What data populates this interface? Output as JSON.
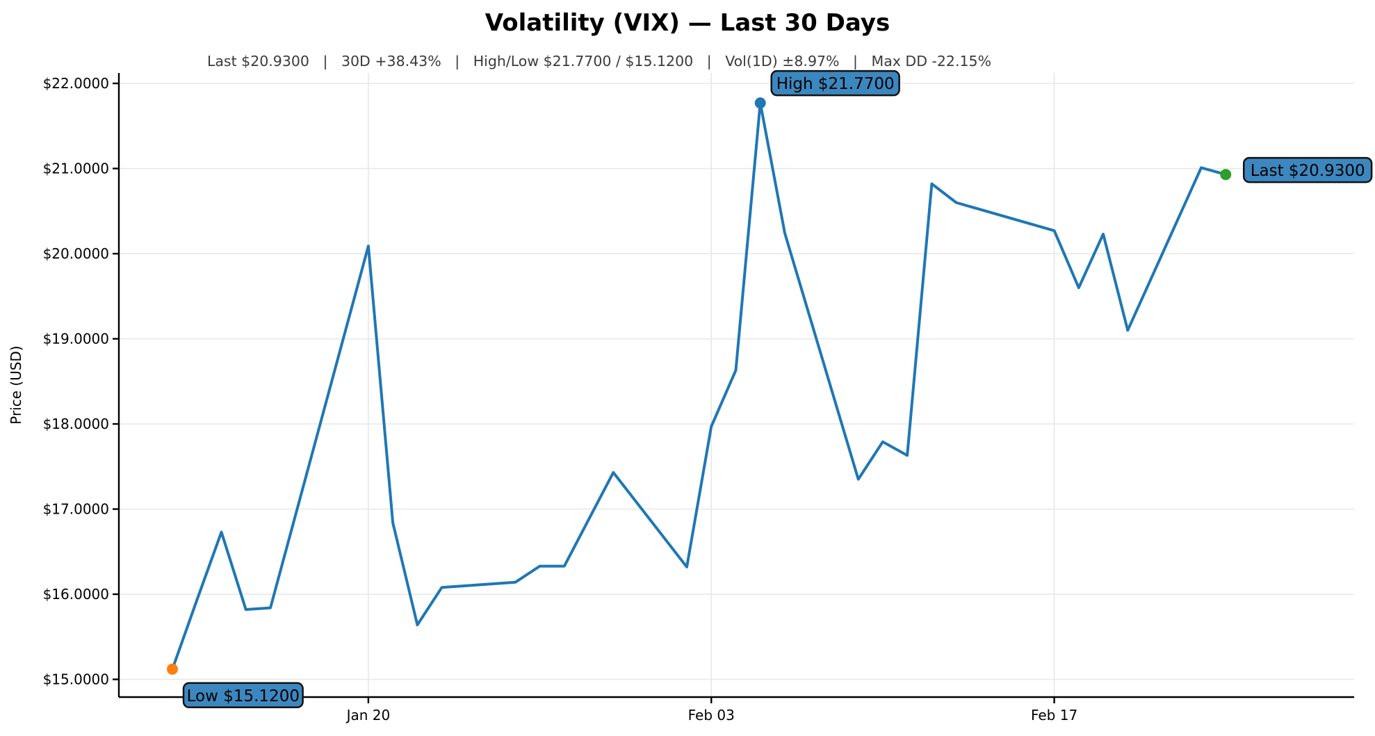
{
  "header": {
    "title": "Volatility (VIX) — Last 30 Days",
    "subtitle_segments": [
      "Last $20.9300",
      "30D +38.43%",
      "High/Low $21.7700 / $15.1200",
      "Vol(1D) ±8.97%",
      "Max DD -22.15%"
    ],
    "subtitle_separator": "|"
  },
  "chart_data": {
    "type": "line",
    "title": "Volatility (VIX) — Last 30 Days",
    "xlabel": "",
    "ylabel": "Price (USD)",
    "grid": true,
    "legend": false,
    "line_color": "#1f77b4",
    "background": "#ffffff",
    "ylim": [
      14.79,
      22.12
    ],
    "y_ticks": [
      {
        "value": 15,
        "label": "$15.0000"
      },
      {
        "value": 16,
        "label": "$16.0000"
      },
      {
        "value": 17,
        "label": "$17.0000"
      },
      {
        "value": 18,
        "label": "$18.0000"
      },
      {
        "value": 19,
        "label": "$19.0000"
      },
      {
        "value": 20,
        "label": "$20.0000"
      },
      {
        "value": 21,
        "label": "$21.0000"
      },
      {
        "value": 22,
        "label": "$22.0000"
      }
    ],
    "x_ticks": [
      {
        "label": "Jan 20",
        "offset": 8
      },
      {
        "label": "Feb 03",
        "offset": 22
      },
      {
        "label": "Feb 17",
        "offset": 36
      }
    ],
    "points": [
      {
        "date": "Jan 12",
        "offset": 0,
        "value": 15.12
      },
      {
        "date": "Jan 13",
        "offset": 1,
        "value": 15.93
      },
      {
        "date": "Jan 14",
        "offset": 2,
        "value": 16.73
      },
      {
        "date": "Jan 15",
        "offset": 3,
        "value": 15.82
      },
      {
        "date": "Jan 16",
        "offset": 4,
        "value": 15.84
      },
      {
        "date": "Jan 20",
        "offset": 8,
        "value": 20.09
      },
      {
        "date": "Jan 21",
        "offset": 9,
        "value": 16.84
      },
      {
        "date": "Jan 22",
        "offset": 10,
        "value": 15.64
      },
      {
        "date": "Jan 23",
        "offset": 11,
        "value": 16.08
      },
      {
        "date": "Jan 26",
        "offset": 14,
        "value": 16.14
      },
      {
        "date": "Jan 27",
        "offset": 15,
        "value": 16.33
      },
      {
        "date": "Jan 28",
        "offset": 16,
        "value": 16.33
      },
      {
        "date": "Jan 29",
        "offset": 17,
        "value": 16.88
      },
      {
        "date": "Jan 30",
        "offset": 18,
        "value": 17.43
      },
      {
        "date": "Feb 02",
        "offset": 21,
        "value": 16.32
      },
      {
        "date": "Feb 03",
        "offset": 22,
        "value": 17.97
      },
      {
        "date": "Feb 04",
        "offset": 23,
        "value": 18.63
      },
      {
        "date": "Feb 05",
        "offset": 24,
        "value": 21.77
      },
      {
        "date": "Feb 06",
        "offset": 25,
        "value": 20.24
      },
      {
        "date": "Feb 09",
        "offset": 28,
        "value": 17.35
      },
      {
        "date": "Feb 10",
        "offset": 29,
        "value": 17.79
      },
      {
        "date": "Feb 11",
        "offset": 30,
        "value": 17.63
      },
      {
        "date": "Feb 12",
        "offset": 31,
        "value": 20.82
      },
      {
        "date": "Feb 13",
        "offset": 32,
        "value": 20.6
      },
      {
        "date": "Feb 17",
        "offset": 36,
        "value": 20.27
      },
      {
        "date": "Feb 18",
        "offset": 37,
        "value": 19.6
      },
      {
        "date": "Feb 19",
        "offset": 38,
        "value": 20.23
      },
      {
        "date": "Feb 20",
        "offset": 39,
        "value": 19.1
      },
      {
        "date": "Feb 23",
        "offset": 42,
        "value": 21.01
      },
      {
        "date": "Feb 24",
        "offset": 43,
        "value": 20.93
      }
    ],
    "annotations": [
      {
        "name": "high",
        "label": "High $21.7700",
        "date": "Feb 05",
        "offset": 24,
        "value": 21.77,
        "dot_color": "#1f77b4",
        "box_dx": 16,
        "box_dy": -46
      },
      {
        "name": "low",
        "label": "Low $15.1200",
        "date": "Jan 12",
        "offset": 0,
        "value": 15.12,
        "dot_color": "#ff7f0e",
        "box_dx": 16,
        "box_dy": 20
      },
      {
        "name": "last",
        "label": "Last $20.9300",
        "date": "Feb 24",
        "offset": 43,
        "value": 20.93,
        "dot_color": "#2ca02c",
        "box_dx": 26,
        "box_dy": -24
      }
    ],
    "annotation_box_fill": "#3c87bf",
    "annotation_box_border": "#111111",
    "grid_color": "#e7e7e7",
    "spine_color": "#000000"
  }
}
